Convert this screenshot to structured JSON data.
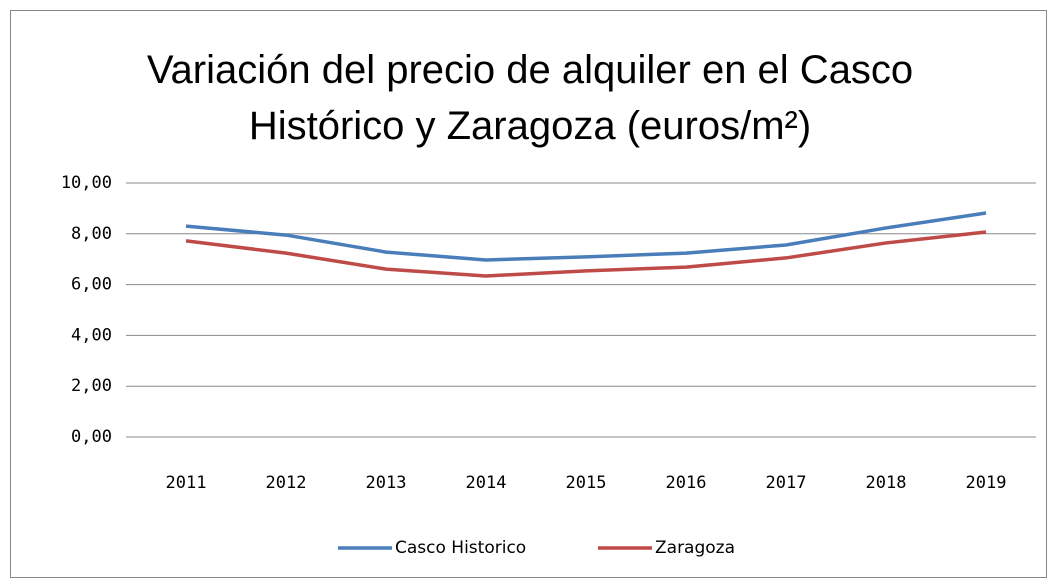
{
  "chart_data": {
    "type": "line",
    "title": "Variación del precio de alquiler en el Casco Histórico y Zaragoza (euros/m²)",
    "categories": [
      "2011",
      "2012",
      "2013",
      "2014",
      "2015",
      "2016",
      "2017",
      "2018",
      "2019"
    ],
    "series": [
      {
        "name": "Casco Historico",
        "color": "#4a7ebb",
        "values": [
          8.3,
          7.95,
          7.28,
          6.97,
          7.09,
          7.24,
          7.56,
          8.23,
          8.82
        ]
      },
      {
        "name": "Zaragoza",
        "color": "#be4b48",
        "values": [
          7.72,
          7.24,
          6.61,
          6.34,
          6.54,
          6.69,
          7.05,
          7.64,
          8.07
        ]
      }
    ],
    "ylim": [
      0,
      10
    ],
    "yticks": [
      {
        "value": 0,
        "label": "0,00"
      },
      {
        "value": 2,
        "label": "2,00"
      },
      {
        "value": 4,
        "label": "4,00"
      },
      {
        "value": 6,
        "label": "6,00"
      },
      {
        "value": 8,
        "label": "8,00"
      },
      {
        "value": 10,
        "label": "10,00"
      }
    ],
    "grid": true,
    "legend": "bottom"
  }
}
